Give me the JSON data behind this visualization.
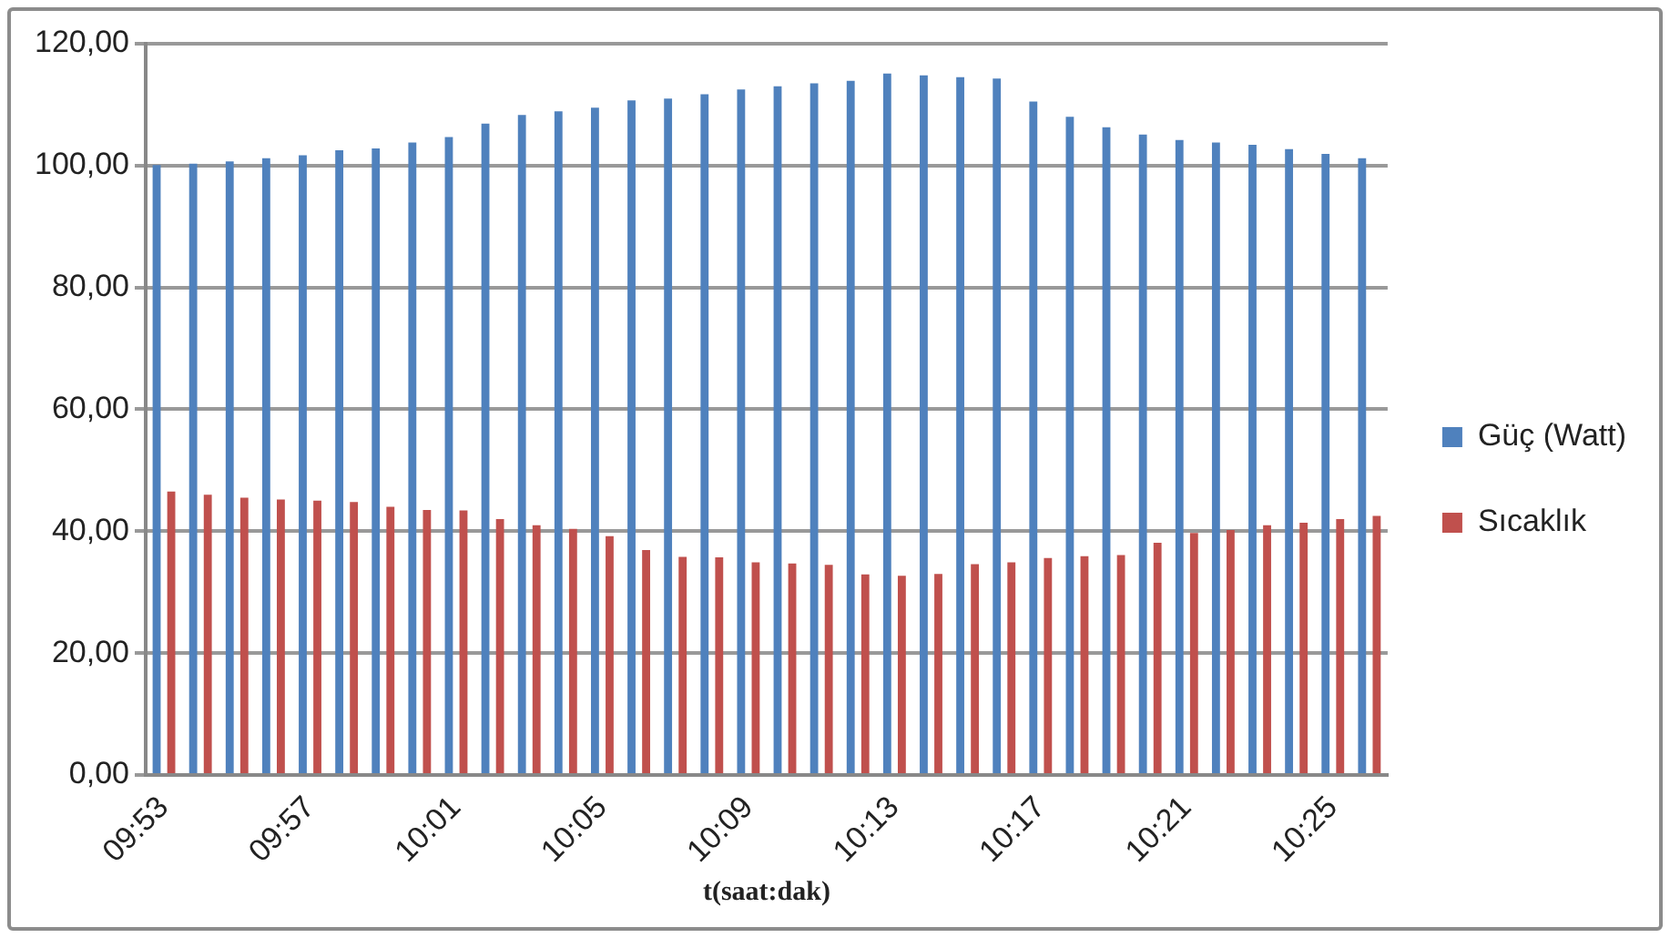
{
  "chart_data": {
    "type": "bar",
    "xlabel": "t(saat:dak)",
    "categories": [
      "09:53",
      null,
      null,
      null,
      "09:57",
      null,
      null,
      null,
      "10:01",
      null,
      null,
      null,
      "10:05",
      null,
      null,
      null,
      "10:09",
      null,
      null,
      null,
      "10:13",
      null,
      null,
      null,
      "10:17",
      null,
      null,
      null,
      "10:21",
      null,
      null,
      null,
      "10:25",
      null
    ],
    "series": [
      {
        "name": "Güç (Watt)",
        "color": "#4f81bd",
        "values": [
          100.1,
          100.3,
          100.7,
          101.2,
          101.7,
          102.5,
          102.8,
          103.8,
          104.7,
          106.9,
          108.3,
          108.9,
          109.5,
          110.7,
          111,
          111.7,
          112.5,
          113,
          113.5,
          113.9,
          115.1,
          114.8,
          114.5,
          114.3,
          110.5,
          108,
          106.3,
          105.1,
          104.2,
          103.8,
          103.4,
          102.7,
          101.9,
          101.2
        ]
      },
      {
        "name": "Sıcaklık",
        "color": "#c0504d",
        "values": [
          46.5,
          46,
          45.5,
          45.2,
          45,
          44.8,
          44,
          43.5,
          43.4,
          42,
          41,
          40.4,
          39.2,
          36.9,
          35.8,
          35.7,
          34.9,
          34.7,
          34.5,
          32.9,
          32.7,
          33,
          34.6,
          34.9,
          35.6,
          35.9,
          36.1,
          38.1,
          39.7,
          40.2,
          41,
          41.4,
          42,
          42.5
        ]
      }
    ],
    "ylim": [
      0,
      120
    ],
    "yticks": [
      {
        "value": 0,
        "label": "0,00"
      },
      {
        "value": 20,
        "label": "20,00"
      },
      {
        "value": 40,
        "label": "40,00"
      },
      {
        "value": 60,
        "label": "60,00"
      },
      {
        "value": 80,
        "label": "80,00"
      },
      {
        "value": 100,
        "label": "100,00"
      },
      {
        "value": 120,
        "label": "120,00"
      }
    ],
    "grid": "y",
    "legend": "right"
  }
}
